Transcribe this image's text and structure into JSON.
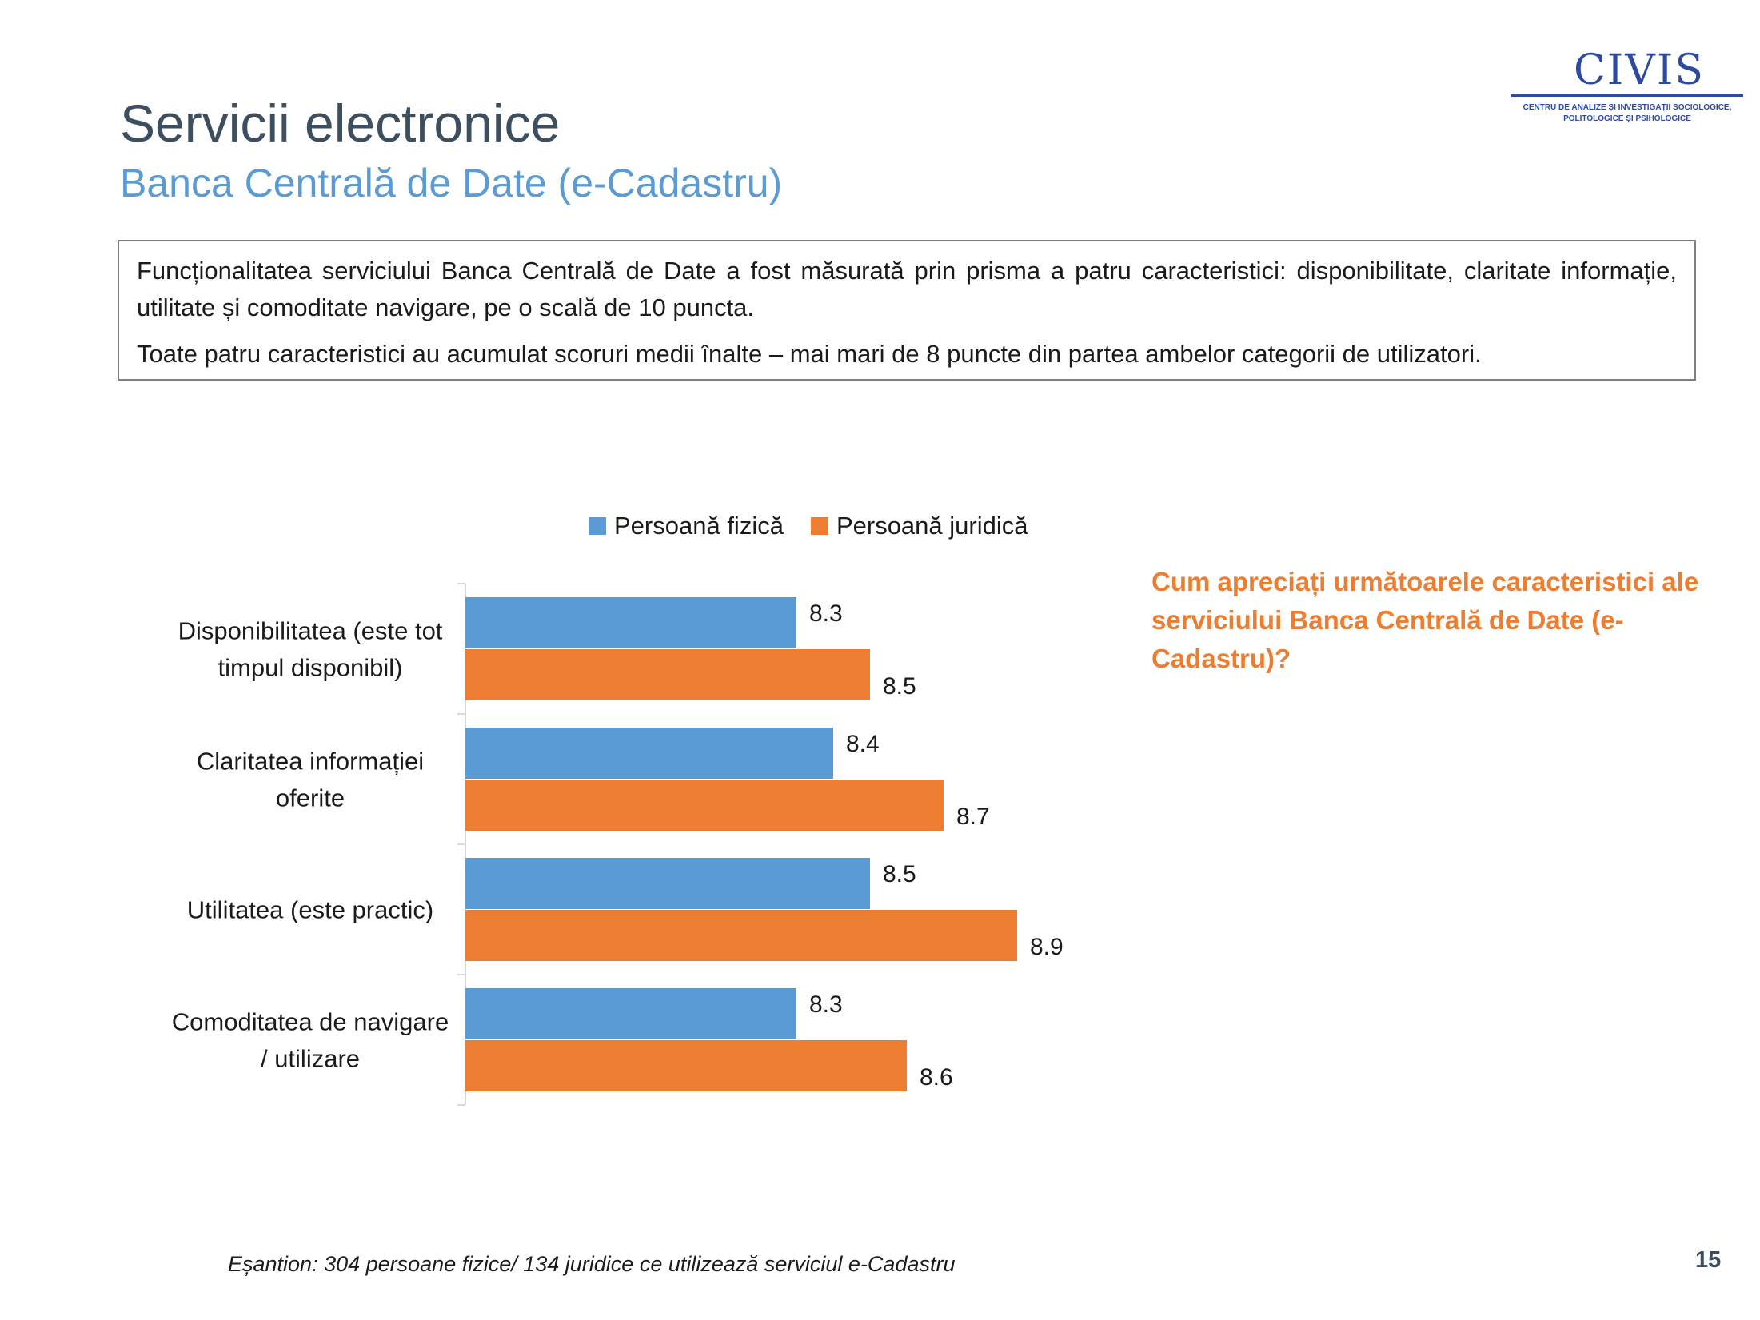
{
  "logo": {
    "mark": "CIVIS",
    "subtitle": "CENTRU DE ANALIZE ȘI INVESTIGAȚII SOCIOLOGICE,\nPOLITOLOGICE ȘI PSIHOLOGICE"
  },
  "header": {
    "title": "Servicii electronice",
    "subtitle": "Banca Centrală de Date (e-Cadastru)"
  },
  "description": {
    "paragraph1": "Funcționalitatea serviciului Banca Centrală de Date a fost măsurată prin prisma a patru caracteristici: disponibilitate, claritate informație, utilitate și comoditate navigare, pe o scală de 10 puncta.",
    "paragraph2": "Toate patru caracteristici au acumulat scoruri medii înalte – mai mari de 8 puncte din partea ambelor categorii de utilizatori."
  },
  "question": "Cum apreciați următoarele caracteristici ale serviciului Banca Centrală de Date (e-Cadastru)?",
  "colors": {
    "series1": "#5b9bd5",
    "series2": "#ed7d31",
    "axis": "#d9d9d9"
  },
  "chart_data": {
    "type": "bar",
    "orientation": "horizontal",
    "categories": [
      [
        "Disponibilitatea (este tot",
        "timpul disponibil)"
      ],
      [
        "Claritatea informației",
        "oferite"
      ],
      [
        "Utilitatea (este practic)"
      ],
      [
        "Comoditatea de navigare",
        "/ utilizare"
      ]
    ],
    "series": [
      {
        "name": "Persoană fizică",
        "values": [
          8.3,
          8.4,
          8.5,
          8.3
        ],
        "labels": [
          "8.3",
          "8.4",
          "8.5",
          "8.3"
        ]
      },
      {
        "name": "Persoană juridică",
        "values": [
          8.5,
          8.7,
          8.9,
          8.6
        ],
        "labels": [
          "8.5",
          "8.7",
          "8.9",
          "8.6"
        ]
      }
    ],
    "xlim": [
      7.4,
      9.0
    ],
    "legend_position": "top",
    "grid": false
  },
  "footer": {
    "sample": "Eșantion: 304 persoane fizice/ 134 juridice ce utilizează serviciul e-Cadastru",
    "page_number": "15"
  }
}
